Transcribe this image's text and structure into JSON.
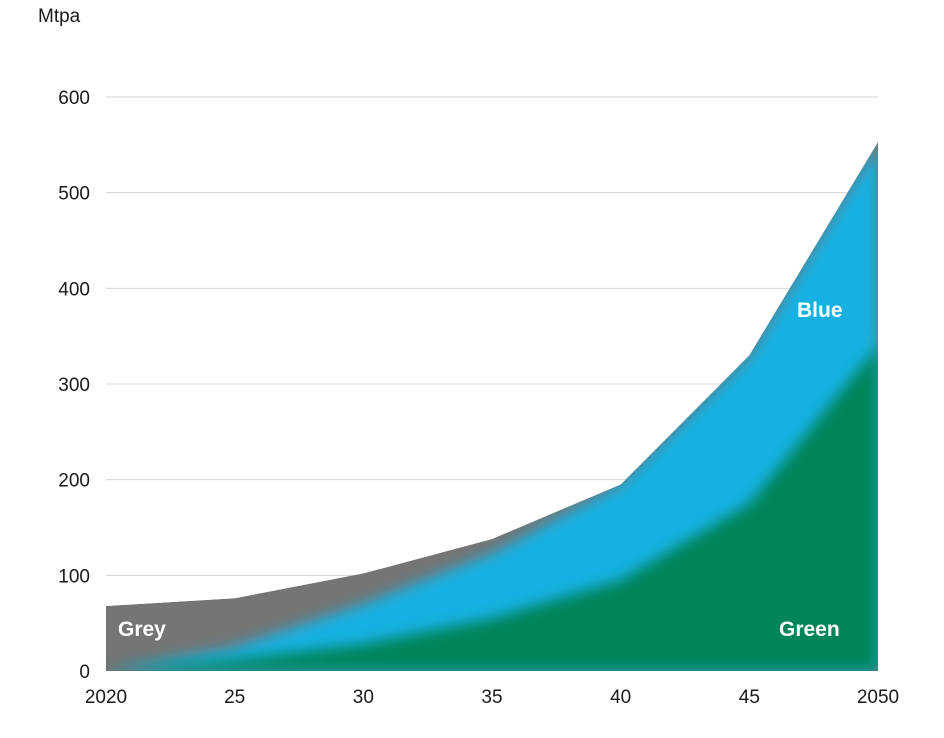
{
  "chart_data": {
    "type": "area",
    "ylabel": "Mtpa",
    "x_tick_labels": [
      "2020",
      "25",
      "30",
      "35",
      "40",
      "45",
      "2050"
    ],
    "y_tick_labels": [
      "0",
      "100",
      "200",
      "300",
      "400",
      "500",
      "600"
    ],
    "x": [
      2020,
      2025,
      2030,
      2035,
      2040,
      2045,
      2050
    ],
    "xlim": [
      2020,
      2050
    ],
    "ylim": [
      0,
      600
    ],
    "grid": true,
    "stacking": "stacked",
    "series": [
      {
        "name": "Green",
        "values": [
          0,
          12,
          28,
          55,
          95,
          175,
          340
        ],
        "color": "#00845a"
      },
      {
        "name": "Blue",
        "values": [
          0,
          13,
          42,
          68,
          100,
          155,
          213
        ],
        "color": "#14b1e2"
      },
      {
        "name": "Grey",
        "values": [
          68,
          51,
          32,
          15,
          0,
          0,
          0
        ],
        "color": "#757575"
      }
    ],
    "totals": [
      68,
      76,
      102,
      138,
      195,
      330,
      553
    ]
  }
}
